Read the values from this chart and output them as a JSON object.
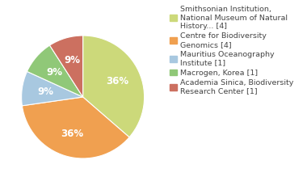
{
  "labels": [
    "Smithsonian Institution,\nNational Museum of Natural\nHistory... [4]",
    "Centre for Biodiversity\nGenomics [4]",
    "Mauritius Oceanography\nInstitute [1]",
    "Macrogen, Korea [1]",
    "Academia Sinica, Biodiversity\nResearch Center [1]"
  ],
  "values": [
    4,
    4,
    1,
    1,
    1
  ],
  "colors": [
    "#ccd97a",
    "#f0a050",
    "#a8c8e0",
    "#90c878",
    "#cc7060"
  ],
  "pct_labels": [
    "36%",
    "36%",
    "9%",
    "9%",
    "9%"
  ],
  "background_color": "#ffffff",
  "text_color": "#444444",
  "label_fontsize": 6.8,
  "pct_fontsize": 8.5
}
